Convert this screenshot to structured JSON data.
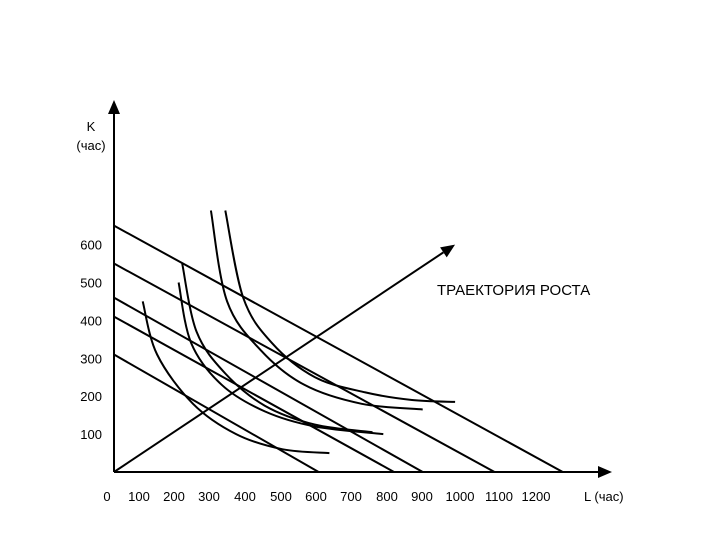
{
  "chart_data": {
    "type": "line",
    "title": "",
    "ylabel": {
      "symbol": "K",
      "unit": "(час)"
    },
    "xlabel": "L (час)",
    "x_tick_labels": [
      "0",
      "100",
      "200",
      "300",
      "400",
      "500",
      "600",
      "700",
      "800",
      "900",
      "1000",
      "1100",
      "1200"
    ],
    "y_tick_labels": [
      "600",
      "500",
      "400",
      "300",
      "200",
      "100"
    ],
    "y_tick_values": [
      600,
      500,
      400,
      300,
      200,
      100
    ],
    "annotation": "ТРАЕКТОРИЯ РОСТА",
    "isocosts": [
      {
        "K_intercept": 650,
        "L_intercept": 1250
      },
      {
        "K_intercept": 550,
        "L_intercept": 1060
      },
      {
        "K_intercept": 460,
        "L_intercept": 860
      },
      {
        "K_intercept": 410,
        "L_intercept": 780
      },
      {
        "K_intercept": 310,
        "L_intercept": 570
      }
    ],
    "isoquants": [
      {
        "points": [
          [
            310,
            690
          ],
          [
            360,
            460
          ],
          [
            440,
            340
          ],
          [
            560,
            250
          ],
          [
            700,
            210
          ],
          [
            830,
            190
          ],
          [
            950,
            185
          ]
        ]
      },
      {
        "points": [
          [
            270,
            690
          ],
          [
            315,
            450
          ],
          [
            410,
            320
          ],
          [
            530,
            230
          ],
          [
            690,
            180
          ],
          [
            860,
            165
          ]
        ]
      },
      {
        "points": [
          [
            190,
            550
          ],
          [
            230,
            370
          ],
          [
            310,
            260
          ],
          [
            420,
            175
          ],
          [
            560,
            125
          ],
          [
            720,
            105
          ]
        ]
      },
      {
        "points": [
          [
            180,
            500
          ],
          [
            215,
            340
          ],
          [
            300,
            230
          ],
          [
            420,
            160
          ],
          [
            560,
            120
          ],
          [
            750,
            100
          ]
        ]
      },
      {
        "points": [
          [
            80,
            450
          ],
          [
            120,
            310
          ],
          [
            220,
            180
          ],
          [
            340,
            100
          ],
          [
            470,
            60
          ],
          [
            600,
            50
          ]
        ]
      }
    ],
    "growth_path": {
      "from": [
        0,
        0
      ],
      "to": [
        950,
        600
      ]
    },
    "grid": false,
    "legend": "none"
  }
}
